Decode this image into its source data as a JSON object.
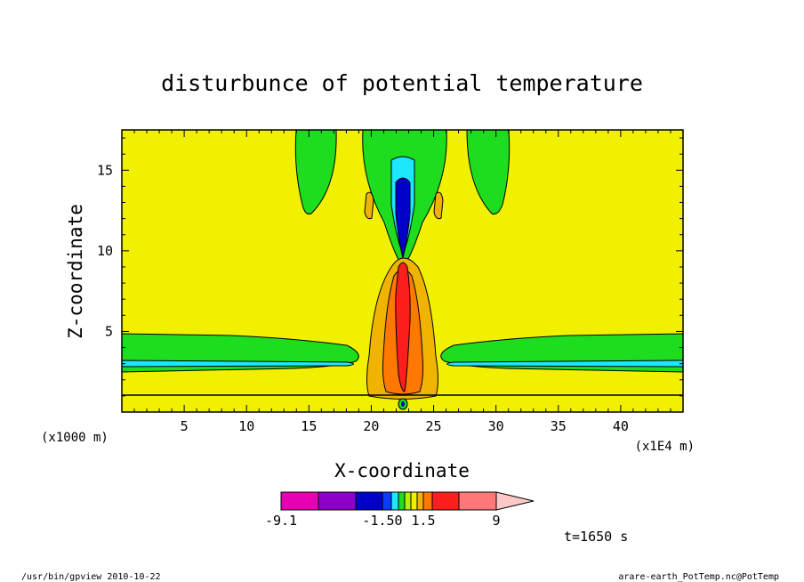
{
  "chart_data": {
    "type": "heatmap",
    "title": "disturbunce of potential temperature",
    "xlabel": "X-coordinate",
    "ylabel": "Z-coordinate",
    "x_unit": "(x1E4 m)",
    "y_unit": "(x1000 m)",
    "xlim": [
      0,
      45
    ],
    "ylim": [
      0,
      17.5
    ],
    "xticks": [
      5,
      10,
      15,
      20,
      25,
      30,
      35,
      40
    ],
    "yticks": [
      5,
      10,
      15
    ],
    "time_label": "t=1650 s",
    "colorbar": {
      "colors": [
        "#e600b4",
        "#8c00c8",
        "#0000c8",
        "#0a3cff",
        "#1ee6ff",
        "#1edc1e",
        "#b4f000",
        "#f0f000",
        "#f0b400",
        "#ff7800",
        "#ff1e1e",
        "#ff7878",
        "#ffc8c8"
      ],
      "labels": [
        "-9.1",
        "-1.50",
        "1.5",
        "9"
      ]
    },
    "regions": [
      {
        "name": "background",
        "color": "#f0f000"
      },
      {
        "name": "negative-low-band-upper",
        "color": "#1edc1e"
      },
      {
        "name": "negative-low-band-core",
        "color": "#1ee6ff"
      },
      {
        "name": "upper-green-lobes",
        "color": "#1edc1e"
      },
      {
        "name": "central-plume-cold-top",
        "color": "#0000c8"
      },
      {
        "name": "central-plume-warm-core",
        "color": "#ff1e1e"
      },
      {
        "name": "central-plume-orange",
        "color": "#ff7800"
      },
      {
        "name": "central-plume-light-orange",
        "color": "#f0b400"
      }
    ]
  },
  "footer": {
    "left": "/usr/bin/gpview  2010-10-22",
    "right": "arare-earth_PotTemp.nc@PotTemp"
  }
}
